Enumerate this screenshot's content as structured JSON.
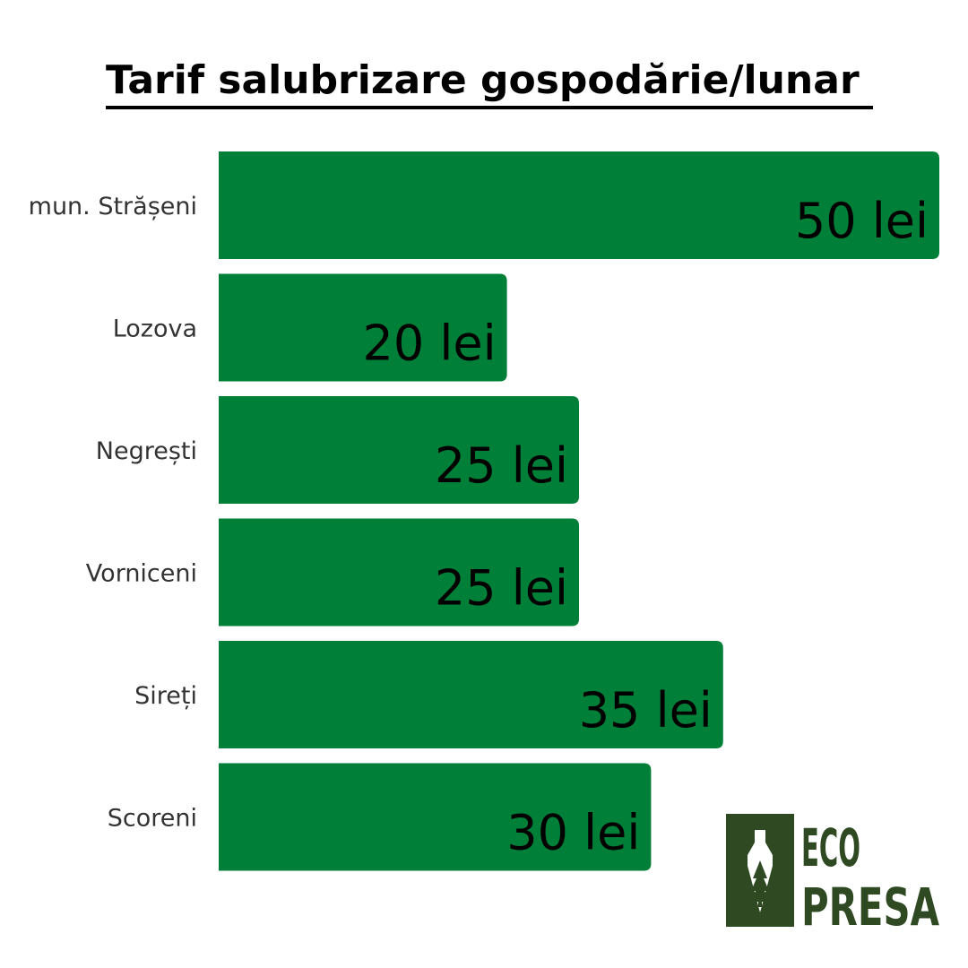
{
  "chart_data": {
    "type": "bar",
    "orientation": "horizontal",
    "title": "Tarif salubrizare gospodărie/lunar",
    "categories": [
      "mun. Strășeni",
      "Lozova",
      "Negrești",
      "Vorniceni",
      "Sireți",
      "Scoreni"
    ],
    "values": [
      50,
      20,
      25,
      25,
      35,
      30
    ],
    "value_labels": [
      "50 lei",
      "20 lei",
      "25 lei",
      "25 lei",
      "35 lei",
      "30 lei"
    ],
    "unit": "lei",
    "xlim": [
      0,
      50
    ],
    "grid": false,
    "legend": "none",
    "bar_color": "#007f38"
  },
  "logo": {
    "line1": "ECO",
    "line2": "PRESA",
    "color": "#2f4a22"
  }
}
